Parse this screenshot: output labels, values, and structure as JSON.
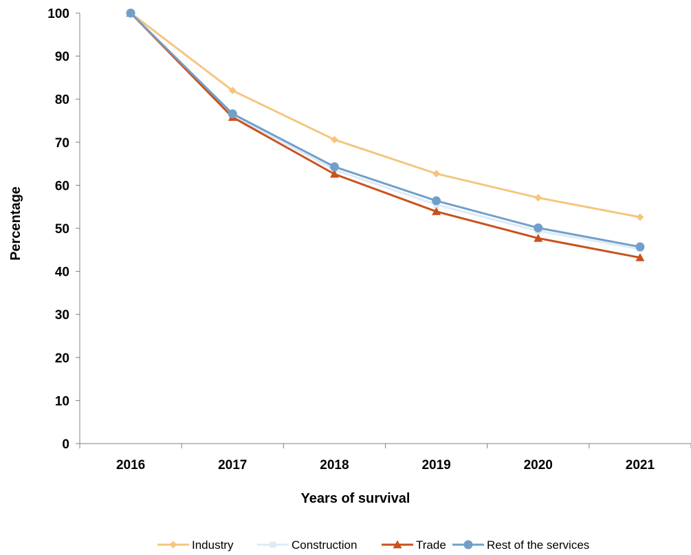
{
  "chart_data": {
    "type": "line",
    "title": "",
    "xlabel": "Years of survival",
    "ylabel": "Percentage",
    "categories": [
      "2016",
      "2017",
      "2018",
      "2019",
      "2020",
      "2021"
    ],
    "ylim": [
      0,
      100
    ],
    "yticks": [
      0,
      10,
      20,
      30,
      40,
      50,
      60,
      70,
      80,
      90,
      100
    ],
    "grid": false,
    "legend_position": "bottom",
    "series": [
      {
        "name": "Industry",
        "color": "#F5C57F",
        "marker": "diamond",
        "values": [
          100,
          82.0,
          70.6,
          62.7,
          57.1,
          52.6
        ]
      },
      {
        "name": "Construction",
        "color": "#DDEBF7",
        "marker": "square",
        "values": [
          100,
          76.2,
          63.6,
          55.5,
          49.4,
          45.2
        ]
      },
      {
        "name": "Trade",
        "color": "#C9511C",
        "marker": "triangle",
        "values": [
          100,
          75.8,
          62.6,
          53.9,
          47.7,
          43.2
        ]
      },
      {
        "name": "Rest of the services",
        "color": "#729FC9",
        "marker": "circle",
        "values": [
          100,
          76.6,
          64.3,
          56.4,
          50.1,
          45.7
        ]
      }
    ]
  }
}
